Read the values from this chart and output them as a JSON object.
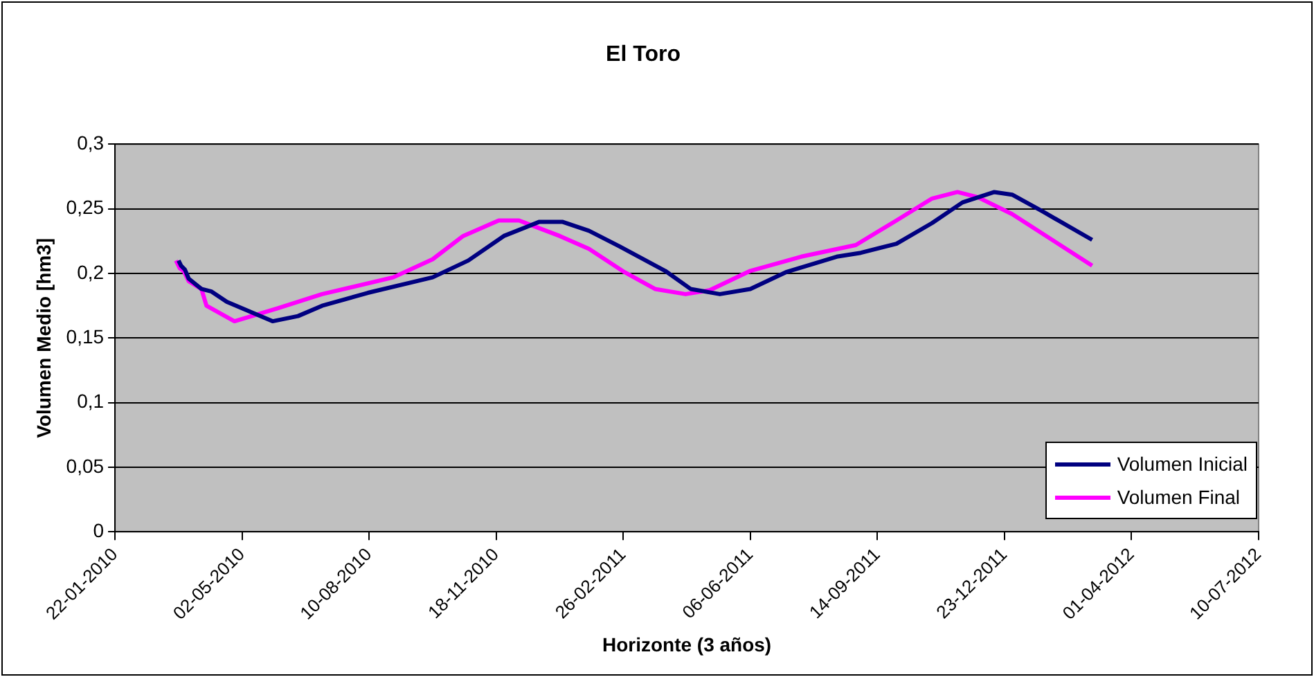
{
  "chart_data": {
    "type": "line",
    "title": "El Toro",
    "xlabel": "Horizonte (3 años)",
    "ylabel": "Volumen Medio [hm3]",
    "xlim": [
      "2010-01-22",
      "2012-07-10"
    ],
    "xticks": [
      {
        "value": "2010-01-22",
        "label": "22-01-2010"
      },
      {
        "value": "2010-05-02",
        "label": "02-05-2010"
      },
      {
        "value": "2010-08-10",
        "label": "10-08-2010"
      },
      {
        "value": "2010-11-18",
        "label": "18-11-2010"
      },
      {
        "value": "2011-02-26",
        "label": "26-02-2011"
      },
      {
        "value": "2011-06-06",
        "label": "06-06-2011"
      },
      {
        "value": "2011-09-14",
        "label": "14-09-2011"
      },
      {
        "value": "2011-12-23",
        "label": "23-12-2011"
      },
      {
        "value": "2012-04-01",
        "label": "01-04-2012"
      },
      {
        "value": "2012-07-10",
        "label": "10-07-2012"
      }
    ],
    "ylim": [
      0,
      0.3
    ],
    "yticks": [
      {
        "value": 0,
        "label": "0"
      },
      {
        "value": 0.05,
        "label": "0,05"
      },
      {
        "value": 0.1,
        "label": "0,1"
      },
      {
        "value": 0.15,
        "label": "0,15"
      },
      {
        "value": 0.2,
        "label": "0,2"
      },
      {
        "value": 0.25,
        "label": "0,25"
      },
      {
        "value": 0.3,
        "label": "0,3"
      }
    ],
    "grid": "y",
    "legend": "bottom right",
    "marker": "none",
    "line_style": "solid",
    "series": [
      {
        "name": "Volumen Inicial",
        "color": "#000080",
        "x": [
          "2010-03-13",
          "2010-03-15",
          "2010-03-18",
          "2010-03-21",
          "2010-03-31",
          "2010-04-08",
          "2010-04-20",
          "2010-05-26",
          "2010-06-15",
          "2010-07-04",
          "2010-08-09",
          "2010-09-29",
          "2010-10-27",
          "2010-11-24",
          "2010-12-22",
          "2011-01-09",
          "2011-01-30",
          "2011-02-23",
          "2011-03-31",
          "2011-04-20",
          "2011-05-13",
          "2011-06-06",
          "2011-07-04",
          "2011-08-13",
          "2011-09-01",
          "2011-09-29",
          "2011-10-27",
          "2011-11-20",
          "2011-12-15",
          "2011-12-29",
          "2012-01-22",
          "2012-03-01"
        ],
        "values": [
          0.21,
          0.206,
          0.203,
          0.196,
          0.188,
          0.186,
          0.178,
          0.163,
          0.167,
          0.175,
          0.185,
          0.197,
          0.21,
          0.229,
          0.24,
          0.24,
          0.233,
          0.221,
          0.202,
          0.188,
          0.184,
          0.188,
          0.201,
          0.213,
          0.216,
          0.223,
          0.239,
          0.255,
          0.263,
          0.261,
          0.248,
          0.226
        ]
      },
      {
        "name": "Volumen Final",
        "color": "#ff00ff",
        "x": [
          "2010-03-11",
          "2010-03-14",
          "2010-03-17",
          "2010-03-21",
          "2010-03-31",
          "2010-04-04",
          "2010-04-26",
          "2010-05-30",
          "2010-07-04",
          "2010-08-29",
          "2010-09-29",
          "2010-10-23",
          "2010-11-20",
          "2010-12-06",
          "2011-01-07",
          "2011-01-30",
          "2011-02-27",
          "2011-03-23",
          "2011-04-16",
          "2011-05-05",
          "2011-06-06",
          "2011-07-16",
          "2011-08-28",
          "2011-09-29",
          "2011-10-27",
          "2011-11-16",
          "2011-12-02",
          "2011-12-29",
          "2012-03-01"
        ],
        "values": [
          0.21,
          0.204,
          0.202,
          0.194,
          0.188,
          0.175,
          0.163,
          0.173,
          0.184,
          0.197,
          0.211,
          0.229,
          0.241,
          0.241,
          0.229,
          0.219,
          0.201,
          0.188,
          0.184,
          0.187,
          0.202,
          0.213,
          0.222,
          0.241,
          0.258,
          0.263,
          0.259,
          0.246,
          0.206
        ]
      }
    ]
  }
}
